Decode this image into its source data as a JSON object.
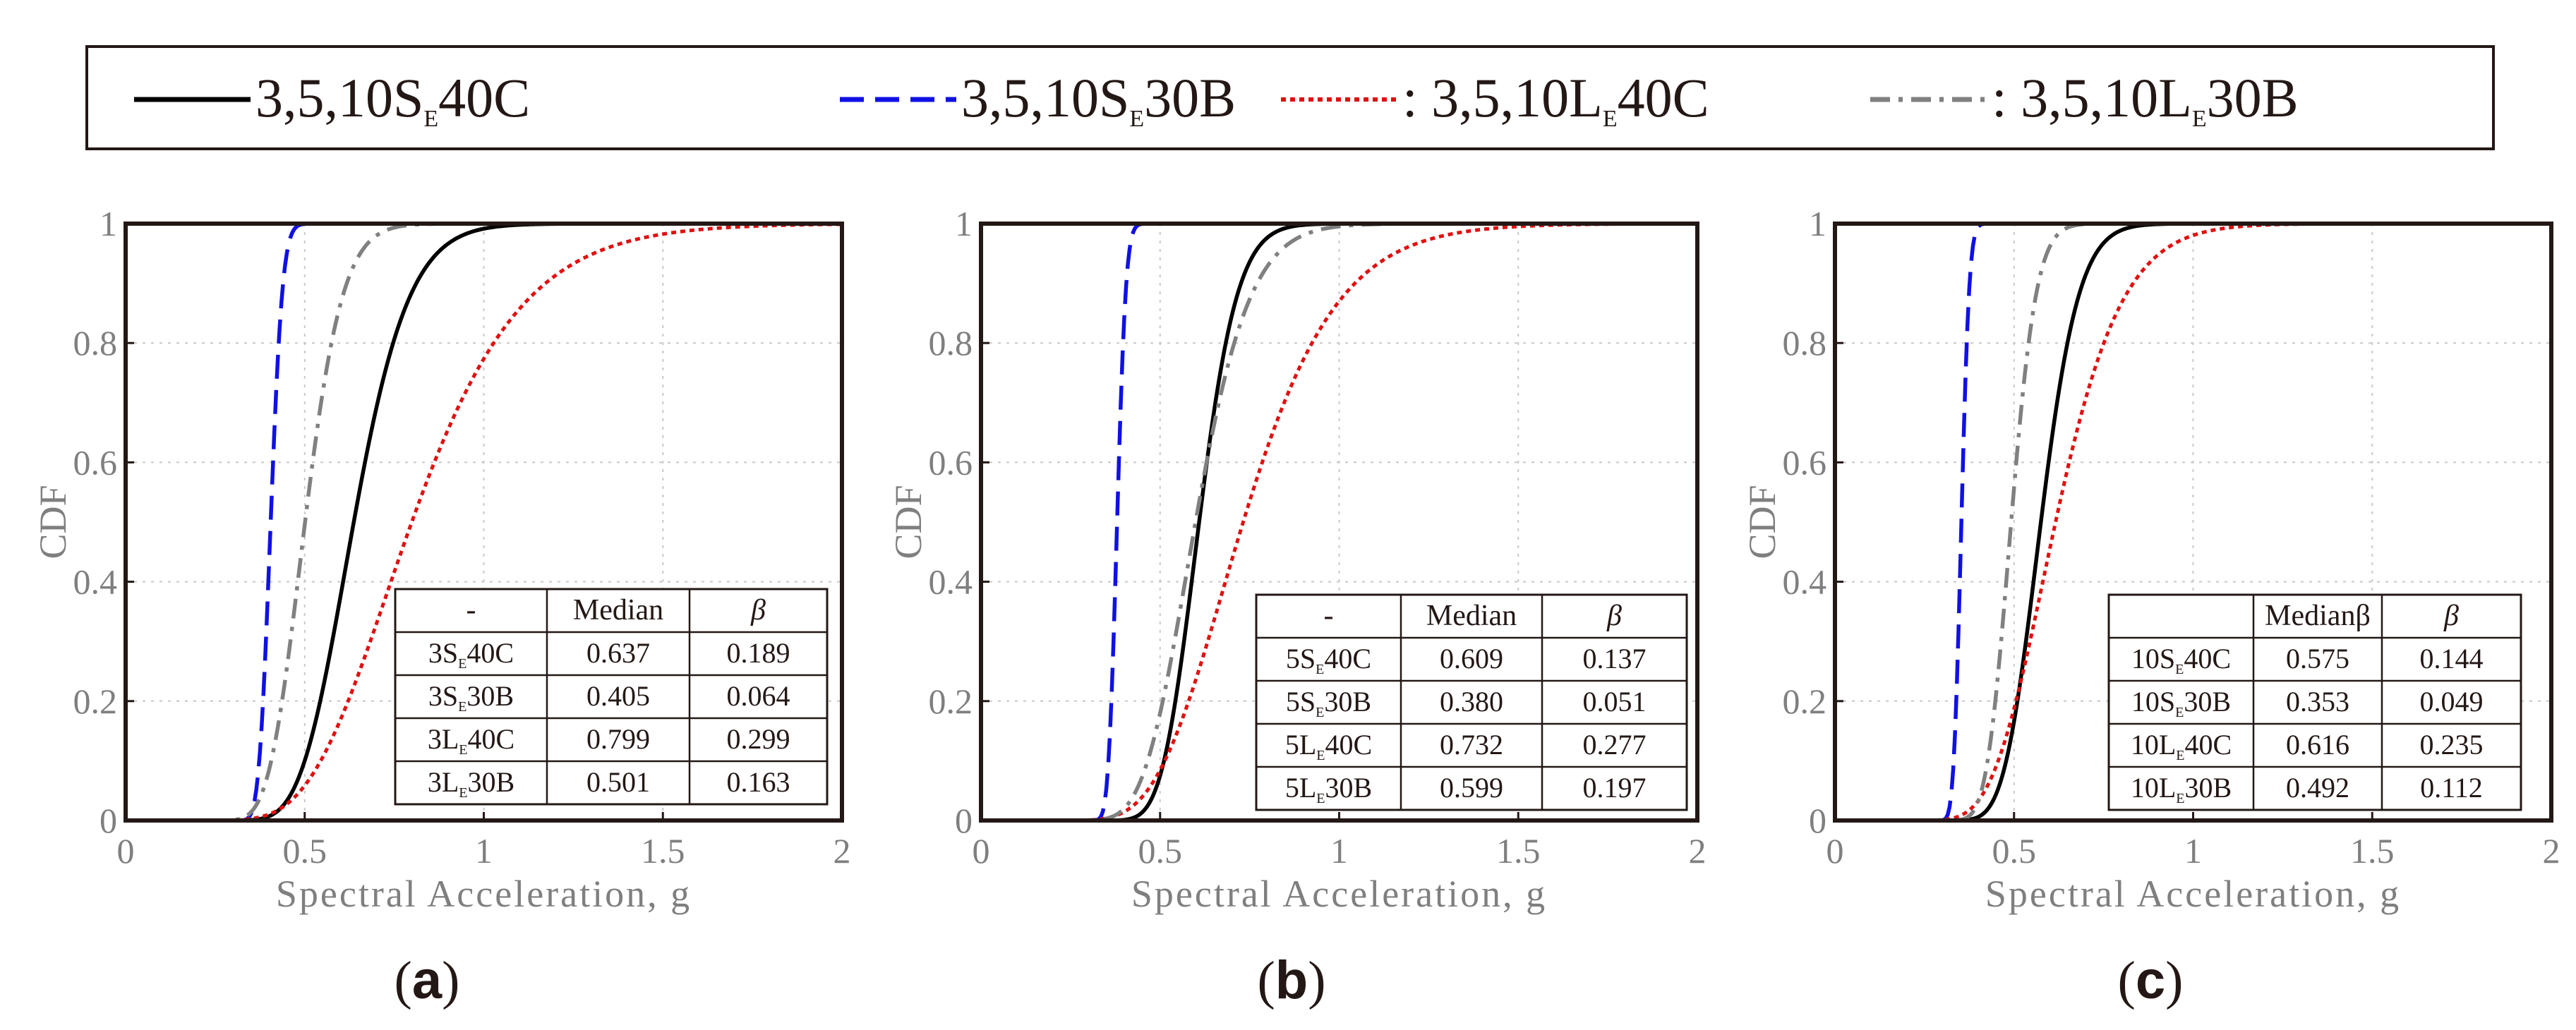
{
  "legend": {
    "entries": [
      {
        "prefix": "",
        "pre": "3,5,10S",
        "sub": "E",
        "post": "40C",
        "color": "#000000",
        "dash": "solid"
      },
      {
        "prefix": "",
        "pre": "3,5,10S",
        "sub": "E",
        "post": "30B",
        "color": "#1010e6",
        "dash": "dash"
      },
      {
        "prefix": ": ",
        "pre": "3,5,10L",
        "sub": "E",
        "post": "40C",
        "color": "#e01010",
        "dash": "dot"
      },
      {
        "prefix": ": ",
        "pre": "3,5,10L",
        "sub": "E",
        "post": "30B",
        "color": "#808080",
        "dash": "dashdot"
      }
    ]
  },
  "chart_data": [
    {
      "type": "line",
      "panel_label": "(a)",
      "xlabel": "Spectral Acceleration, g",
      "ylabel": "CDF",
      "xlim": [
        0,
        2
      ],
      "ylim": [
        0,
        1
      ],
      "xticks": [
        0,
        0.5,
        1,
        1.5,
        2
      ],
      "xtick_labels": [
        "0",
        "0.5",
        "1",
        "1.5",
        "2"
      ],
      "yticks": [
        0,
        0.2,
        0.4,
        0.6,
        0.8,
        1
      ],
      "ytick_labels": [
        "0",
        "0.2",
        "0.4",
        "0.6",
        "0.8",
        "1"
      ],
      "grid": true,
      "series": [
        {
          "name": "3SE40C",
          "median": 0.637,
          "beta": 0.189,
          "color": "#000000",
          "dash": "solid"
        },
        {
          "name": "3SE30B",
          "median": 0.405,
          "beta": 0.064,
          "color": "#1010e6",
          "dash": "dash"
        },
        {
          "name": "3LE40C",
          "median": 0.799,
          "beta": 0.299,
          "color": "#e01010",
          "dash": "dot"
        },
        {
          "name": "3LE30B",
          "median": 0.501,
          "beta": 0.163,
          "color": "#808080",
          "dash": "dashdot"
        }
      ],
      "table": {
        "headers": [
          "-",
          "Median",
          "β"
        ],
        "rows": [
          {
            "pre": "3S",
            "sub": "E",
            "post": "40C",
            "median": "0.637",
            "beta": "0.189"
          },
          {
            "pre": "3S",
            "sub": "E",
            "post": "30B",
            "median": "0.405",
            "beta": "0.064"
          },
          {
            "pre": "3L",
            "sub": "E",
            "post": "40C",
            "median": "0.799",
            "beta": "0.299"
          },
          {
            "pre": "3L",
            "sub": "E",
            "post": "30B",
            "median": "0.501",
            "beta": "0.163"
          }
        ]
      }
    },
    {
      "type": "line",
      "panel_label": "(b)",
      "xlabel": "Spectral Acceleration, g",
      "ylabel": "CDF",
      "xlim": [
        0,
        2
      ],
      "ylim": [
        0,
        1
      ],
      "xticks": [
        0,
        0.5,
        1,
        1.5,
        2
      ],
      "xtick_labels": [
        "0",
        "0.5",
        "1",
        "1.5",
        "2"
      ],
      "yticks": [
        0,
        0.2,
        0.4,
        0.6,
        0.8,
        1
      ],
      "ytick_labels": [
        "0",
        "0.2",
        "0.4",
        "0.6",
        "0.8",
        "1"
      ],
      "grid": true,
      "series": [
        {
          "name": "5SE40C",
          "median": 0.609,
          "beta": 0.137,
          "color": "#000000",
          "dash": "solid"
        },
        {
          "name": "5SE30B",
          "median": 0.38,
          "beta": 0.051,
          "color": "#1010e6",
          "dash": "dash"
        },
        {
          "name": "5LE40C",
          "median": 0.732,
          "beta": 0.277,
          "color": "#e01010",
          "dash": "dot"
        },
        {
          "name": "5LE30B",
          "median": 0.599,
          "beta": 0.197,
          "color": "#808080",
          "dash": "dashdot"
        }
      ],
      "table": {
        "headers": [
          "-",
          "Median",
          "β"
        ],
        "rows": [
          {
            "pre": "5S",
            "sub": "E",
            "post": "40C",
            "median": "0.609",
            "beta": "0.137"
          },
          {
            "pre": "5S",
            "sub": "E",
            "post": "30B",
            "median": "0.380",
            "beta": "0.051"
          },
          {
            "pre": "5L",
            "sub": "E",
            "post": "40C",
            "median": "0.732",
            "beta": "0.277"
          },
          {
            "pre": "5L",
            "sub": "E",
            "post": "30B",
            "median": "0.599",
            "beta": "0.197"
          }
        ]
      }
    },
    {
      "type": "line",
      "panel_label": "(c)",
      "xlabel": "Spectral Acceleration, g",
      "ylabel": "CDF",
      "xlim": [
        0,
        2
      ],
      "ylim": [
        0,
        1
      ],
      "xticks": [
        0,
        0.5,
        1,
        1.5,
        2
      ],
      "xtick_labels": [
        "0",
        "0.5",
        "1",
        "1.5",
        "2"
      ],
      "yticks": [
        0,
        0.2,
        0.4,
        0.6,
        0.8,
        1
      ],
      "ytick_labels": [
        "0",
        "0.2",
        "0.4",
        "0.6",
        "0.8",
        "1"
      ],
      "grid": true,
      "series": [
        {
          "name": "10SE40C",
          "median": 0.575,
          "beta": 0.144,
          "color": "#000000",
          "dash": "solid"
        },
        {
          "name": "10SE30B",
          "median": 0.353,
          "beta": 0.049,
          "color": "#1010e6",
          "dash": "dash"
        },
        {
          "name": "10LE40C",
          "median": 0.616,
          "beta": 0.235,
          "color": "#e01010",
          "dash": "dot"
        },
        {
          "name": "10LE30B",
          "median": 0.492,
          "beta": 0.112,
          "color": "#808080",
          "dash": "dashdot"
        }
      ],
      "table": {
        "headers": [
          "",
          "Medianβ",
          "β"
        ],
        "rows": [
          {
            "pre": "10S",
            "sub": "E",
            "post": "40C",
            "median": "0.575",
            "beta": "0.144"
          },
          {
            "pre": "10S",
            "sub": "E",
            "post": "30B",
            "median": "0.353",
            "beta": "0.049"
          },
          {
            "pre": "10L",
            "sub": "E",
            "post": "40C",
            "median": "0.616",
            "beta": "0.235"
          },
          {
            "pre": "10L",
            "sub": "E",
            "post": "30B",
            "median": "0.492",
            "beta": "0.112"
          }
        ]
      }
    }
  ]
}
